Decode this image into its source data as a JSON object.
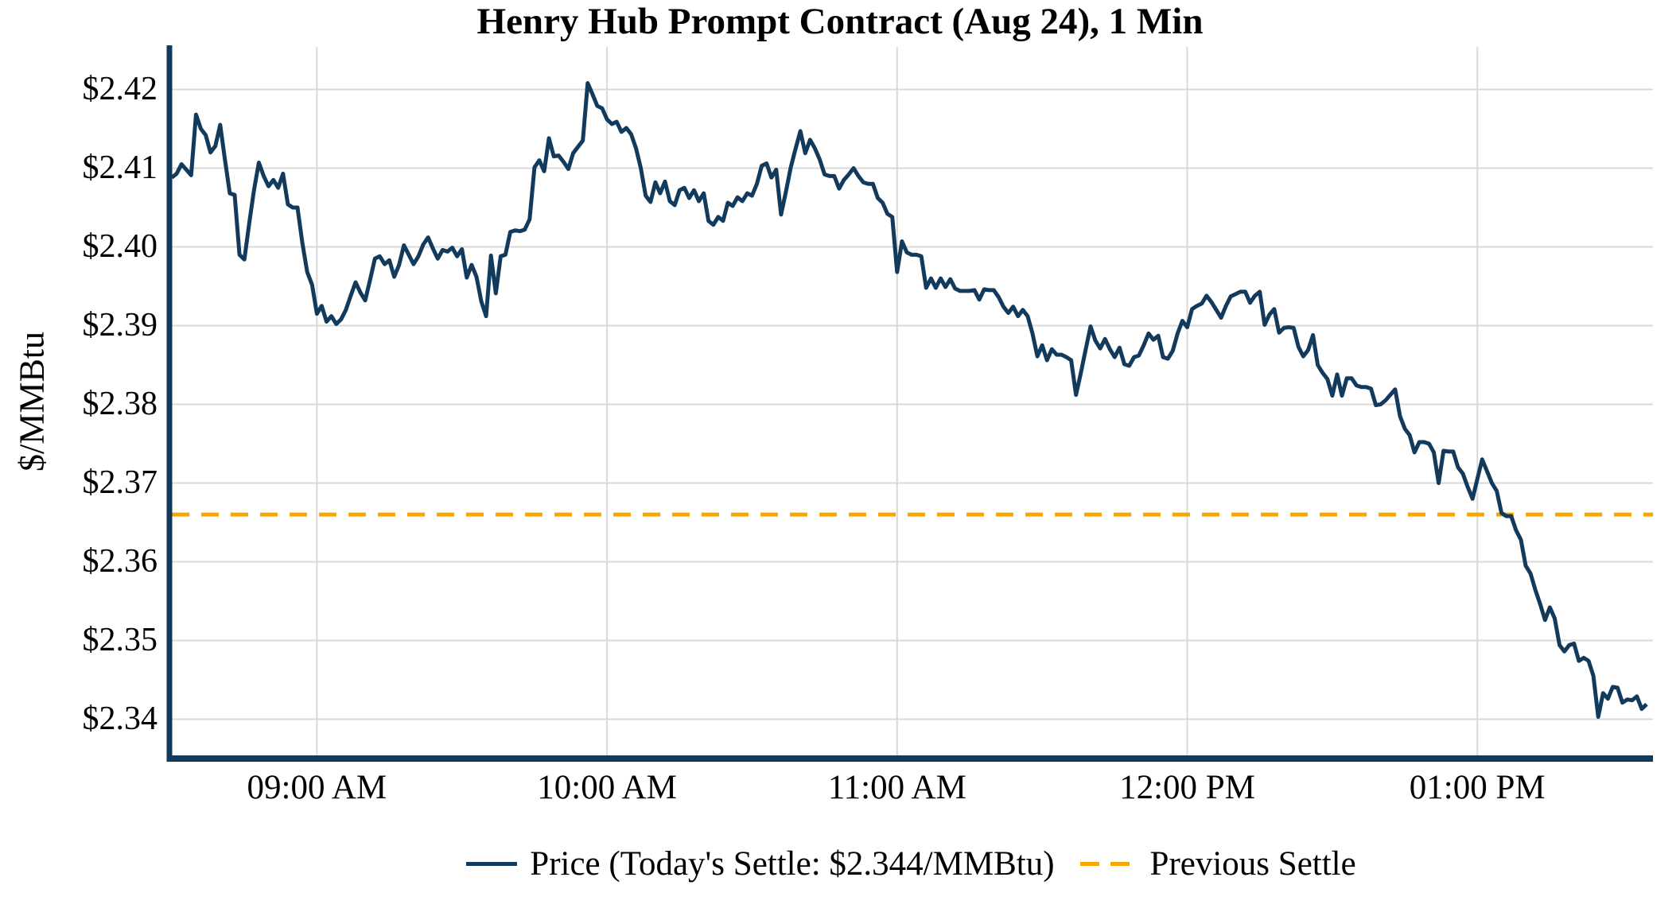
{
  "title": "Henry Hub Prompt Contract (Aug 24), 1 Min",
  "y_axis": {
    "label": "$/MMBtu",
    "ticks": [
      {
        "label": "$2.42",
        "value": 2.42
      },
      {
        "label": "$2.41",
        "value": 2.41
      },
      {
        "label": "$2.40",
        "value": 2.4
      },
      {
        "label": "$2.39",
        "value": 2.39
      },
      {
        "label": "$2.38",
        "value": 2.38
      },
      {
        "label": "$2.37",
        "value": 2.37
      },
      {
        "label": "$2.36",
        "value": 2.36
      },
      {
        "label": "$2.35",
        "value": 2.35
      },
      {
        "label": "$2.34",
        "value": 2.34
      }
    ]
  },
  "x_axis": {
    "ticks": [
      {
        "label": "09:00 AM",
        "minute": 30
      },
      {
        "label": "10:00 AM",
        "minute": 90
      },
      {
        "label": "11:00 AM",
        "minute": 150
      },
      {
        "label": "12:00 PM",
        "minute": 210
      },
      {
        "label": "01:00 PM",
        "minute": 270
      }
    ]
  },
  "legend": {
    "price_label": "Price (Today's Settle: $2.344/MMBtu)",
    "previous_settle_label": "Previous Settle"
  },
  "colors": {
    "price_line": "#123A5C",
    "previous_settle": "#F9A602",
    "grid": "#D9D9D9",
    "axis": "#123A5C",
    "text": "#000000",
    "background": "#FFFFFF"
  },
  "chart_data": {
    "type": "line",
    "title": "Henry Hub Prompt Contract (Aug 24), 1 Min",
    "xlabel": "",
    "ylabel": "$/MMBtu",
    "x_start": "8:30 AM",
    "x_end": "1:35 PM",
    "x_interval_minutes": 1,
    "x_total_minutes": 305,
    "ylim": [
      2.3351,
      2.4254
    ],
    "grid": true,
    "legend_position": "bottom-center",
    "previous_settle": 2.366,
    "todays_settle": 2.344,
    "series": [
      {
        "name": "Price",
        "values": [
          2.4088,
          2.4093,
          2.4105,
          2.4098,
          2.4091,
          2.4168,
          2.415,
          2.4142,
          2.412,
          2.4128,
          2.4155,
          2.411,
          2.4068,
          2.4066,
          2.399,
          2.3984,
          2.403,
          2.4072,
          2.4107,
          2.409,
          2.4077,
          2.4085,
          2.4075,
          2.4093,
          2.4054,
          2.405,
          2.405,
          2.4005,
          2.3968,
          2.3952,
          2.3915,
          2.3925,
          2.3905,
          2.3912,
          2.3902,
          2.3908,
          2.392,
          2.3938,
          2.3955,
          2.3942,
          2.3932,
          2.3958,
          2.3985,
          2.3988,
          2.3978,
          2.3983,
          2.3962,
          2.3977,
          2.4002,
          2.399,
          2.3978,
          2.3988,
          2.4003,
          2.4012,
          2.3998,
          2.3985,
          2.3996,
          2.3994,
          2.3999,
          2.3988,
          2.3997,
          2.3961,
          2.3977,
          2.3962,
          2.3931,
          2.3912,
          2.3989,
          2.3941,
          2.3988,
          2.399,
          2.4019,
          2.4021,
          2.402,
          2.4022,
          2.4035,
          2.4101,
          2.411,
          2.4096,
          2.4138,
          2.4115,
          2.4116,
          2.4108,
          2.4099,
          2.4119,
          2.4127,
          2.4135,
          2.4208,
          2.4194,
          2.4179,
          2.4176,
          2.4162,
          2.4156,
          2.4159,
          2.4146,
          2.4151,
          2.4143,
          2.4125,
          2.41,
          2.4065,
          2.4057,
          2.4082,
          2.4068,
          2.4083,
          2.4058,
          2.4053,
          2.4072,
          2.4075,
          2.4062,
          2.4072,
          2.4058,
          2.4068,
          2.4033,
          2.4028,
          2.4038,
          2.4033,
          2.4056,
          2.4052,
          2.4063,
          2.4058,
          2.4068,
          2.4065,
          2.408,
          2.4103,
          2.4106,
          2.4088,
          2.4098,
          2.4041,
          2.407,
          2.4101,
          2.4125,
          2.4147,
          2.4119,
          2.4136,
          2.4125,
          2.4111,
          2.4092,
          2.409,
          2.409,
          2.4074,
          2.4085,
          2.4092,
          2.41,
          2.409,
          2.4082,
          2.408,
          2.408,
          2.4062,
          2.4056,
          2.4042,
          2.4038,
          2.3968,
          2.4007,
          2.3993,
          2.399,
          2.399,
          2.3988,
          2.3948,
          2.396,
          2.3948,
          2.396,
          2.3949,
          2.3959,
          2.3947,
          2.3944,
          2.3944,
          2.3944,
          2.3945,
          2.3933,
          2.3946,
          2.3945,
          2.3945,
          2.3936,
          2.3924,
          2.3916,
          2.3924,
          2.3912,
          2.392,
          2.3912,
          2.389,
          2.3861,
          2.3875,
          2.3856,
          2.387,
          2.3863,
          2.3863,
          2.386,
          2.3856,
          2.3812,
          2.384,
          2.387,
          2.3899,
          2.3881,
          2.3871,
          2.3883,
          2.387,
          2.386,
          2.3872,
          2.3851,
          2.3849,
          2.386,
          2.3862,
          2.3875,
          2.389,
          2.3882,
          2.3887,
          2.386,
          2.3858,
          2.3868,
          2.389,
          2.3906,
          2.3898,
          2.3921,
          2.3925,
          2.3928,
          2.3938,
          2.393,
          2.392,
          2.391,
          2.3925,
          2.3937,
          2.394,
          2.3943,
          2.3943,
          2.3929,
          2.3938,
          2.3943,
          2.3901,
          2.3914,
          2.3921,
          2.3891,
          2.3897,
          2.3898,
          2.3897,
          2.3873,
          2.3861,
          2.3869,
          2.3888,
          2.385,
          2.384,
          2.3832,
          2.3811,
          2.3838,
          2.3811,
          2.3833,
          2.3833,
          2.3824,
          2.3822,
          2.3822,
          2.382,
          2.3799,
          2.38,
          2.3805,
          2.3812,
          2.3819,
          2.3785,
          2.3769,
          2.3761,
          2.3739,
          2.3752,
          2.3752,
          2.375,
          2.3739,
          2.37,
          2.3741,
          2.374,
          2.374,
          2.372,
          2.3712,
          2.3695,
          2.368,
          2.3705,
          2.373,
          2.3715,
          2.37,
          2.369,
          2.3662,
          2.3658,
          2.3658,
          2.364,
          2.3628,
          2.3595,
          2.3585,
          2.3564,
          2.3546,
          2.3526,
          2.3542,
          2.3528,
          2.3494,
          2.3486,
          2.3494,
          2.3496,
          2.3474,
          2.3478,
          2.3474,
          2.3455,
          2.3403,
          2.3433,
          2.3426,
          2.3441,
          2.344,
          2.3421,
          2.3425,
          2.3424,
          2.3429,
          2.3413,
          2.3419
        ]
      }
    ]
  }
}
